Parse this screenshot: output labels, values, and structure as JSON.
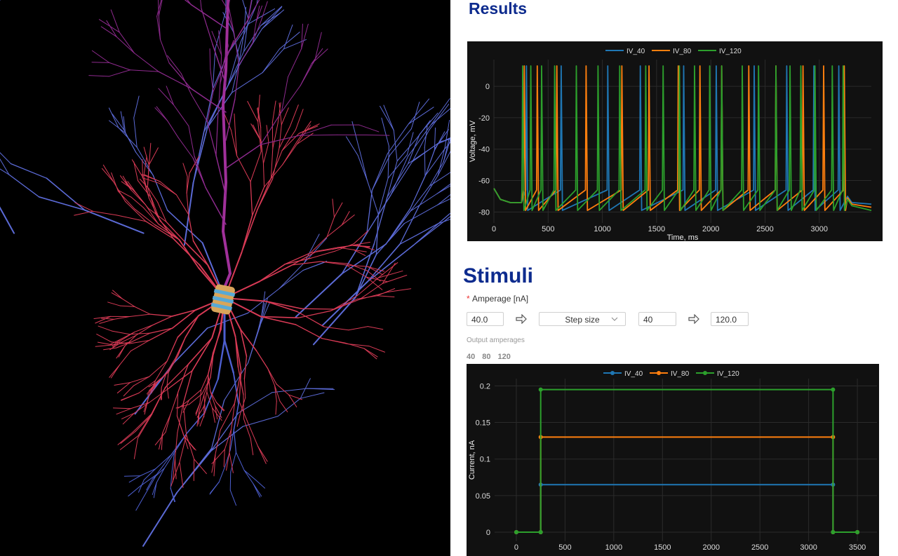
{
  "results": {
    "title": "Results"
  },
  "stimuli": {
    "title": "Stimuli",
    "required_mark": "*",
    "amperage_label": "Amperage [nA]",
    "start": "40.0",
    "mode": "Step size",
    "step": "40",
    "end": "120.0",
    "output_label": "Output amperages",
    "outputs": [
      "40",
      "80",
      "120"
    ]
  },
  "chart_data": [
    {
      "type": "line",
      "xlabel": "Time, ms",
      "ylabel": "Voltage, mV",
      "xlim": [
        0,
        3480
      ],
      "ylim": [
        -87,
        17
      ],
      "xticks": [
        0,
        500,
        1000,
        1500,
        2000,
        2500,
        3000
      ],
      "yticks": [
        -80,
        -60,
        -40,
        -20,
        0
      ],
      "grid": true,
      "legend": "top",
      "markers": false,
      "series": [
        {
          "name": "IV_40",
          "color": "#1f77b4",
          "x": [
            0,
            60,
            150,
            255,
            294,
            300,
            312,
            614,
            620,
            632,
            1044,
            1050,
            1062,
            1344,
            1350,
            1362,
            1744,
            1750,
            1762,
            2044,
            2050,
            2062,
            2394,
            2400,
            2412,
            2694,
            2700,
            2712,
            2944,
            2950,
            2962,
            3174,
            3180,
            3192,
            3260,
            3300,
            3480
          ],
          "values": [
            -65,
            -72,
            -74,
            -74,
            -66,
            13,
            -79,
            -66,
            13,
            -79,
            -66,
            13,
            -79,
            -66,
            13,
            -79,
            -66,
            13,
            -79,
            -66,
            13,
            -79,
            -66,
            13,
            -79,
            -66,
            13,
            -79,
            -66,
            13,
            -79,
            -66,
            13,
            -79,
            -70,
            -74,
            -75
          ]
        },
        {
          "name": "IV_80",
          "color": "#ff7f0e",
          "x": [
            0,
            60,
            150,
            255,
            274,
            280,
            292,
            394,
            400,
            412,
            574,
            580,
            592,
            844,
            850,
            862,
            1174,
            1180,
            1192,
            1424,
            1430,
            1442,
            1694,
            1700,
            1712,
            1894,
            1900,
            1912,
            2094,
            2100,
            2112,
            2344,
            2350,
            2362,
            2594,
            2600,
            2612,
            2844,
            2850,
            2862,
            3034,
            3040,
            3052,
            3224,
            3230,
            3242,
            3260,
            3300,
            3480
          ],
          "values": [
            -65,
            -72,
            -74,
            -74,
            -66,
            13,
            -79,
            -66,
            13,
            -79,
            -66,
            13,
            -79,
            -66,
            13,
            -79,
            -66,
            13,
            -79,
            -66,
            13,
            -79,
            -66,
            13,
            -79,
            -66,
            13,
            -79,
            -66,
            13,
            -79,
            -66,
            13,
            -79,
            -66,
            13,
            -79,
            -66,
            13,
            -79,
            -66,
            13,
            -79,
            -66,
            13,
            -79,
            -71,
            -75,
            -77
          ]
        },
        {
          "name": "IV_120",
          "color": "#2ca02c",
          "x": [
            0,
            60,
            150,
            255,
            259,
            265,
            277,
            334,
            340,
            352,
            434,
            440,
            452,
            554,
            560,
            572,
            754,
            760,
            772,
            954,
            960,
            972,
            1154,
            1160,
            1172,
            1394,
            1400,
            1412,
            1554,
            1560,
            1572,
            1704,
            1710,
            1722,
            1844,
            1850,
            1862,
            1984,
            1990,
            2002,
            2094,
            2100,
            2112,
            2284,
            2290,
            2302,
            2434,
            2440,
            2452,
            2594,
            2600,
            2612,
            2724,
            2730,
            2742,
            2824,
            2830,
            2842,
            2954,
            2960,
            2972,
            3114,
            3120,
            3132,
            3214,
            3220,
            3232,
            3260,
            3300,
            3480
          ],
          "values": [
            -65,
            -72,
            -74,
            -74,
            -66,
            13,
            -79,
            -66,
            13,
            -79,
            -66,
            13,
            -79,
            -66,
            13,
            -79,
            -66,
            13,
            -79,
            -66,
            13,
            -79,
            -66,
            13,
            -79,
            -66,
            13,
            -79,
            -66,
            13,
            -79,
            -66,
            13,
            -79,
            -66,
            13,
            -79,
            -66,
            13,
            -79,
            -66,
            13,
            -79,
            -66,
            13,
            -79,
            -66,
            13,
            -79,
            -66,
            13,
            -79,
            -66,
            13,
            -79,
            -66,
            13,
            -79,
            -66,
            13,
            -79,
            -66,
            13,
            -79,
            -66,
            13,
            -79,
            -72,
            -76,
            -79
          ]
        }
      ]
    },
    {
      "type": "line",
      "ylabel": "Current, nA",
      "xlim": [
        -223,
        3701
      ],
      "ylim": [
        -0.0125,
        0.21
      ],
      "xticks": [
        0,
        500,
        1000,
        1500,
        2000,
        2500,
        3000,
        3500
      ],
      "yticks": [
        0,
        0.05,
        0.1,
        0.15,
        0.2
      ],
      "grid": true,
      "legend": "top",
      "markers": true,
      "series": [
        {
          "name": "IV_40",
          "color": "#1f77b4",
          "x": [
            0,
            250,
            250,
            3250,
            3250,
            3500
          ],
          "values": [
            0,
            0,
            0.065,
            0.065,
            0,
            0
          ]
        },
        {
          "name": "IV_80",
          "color": "#ff7f0e",
          "x": [
            0,
            250,
            250,
            3250,
            3250,
            3500
          ],
          "values": [
            0,
            0,
            0.13,
            0.13,
            0,
            0
          ]
        },
        {
          "name": "IV_120",
          "color": "#2ca02c",
          "x": [
            0,
            250,
            250,
            3250,
            3250,
            3500
          ],
          "values": [
            0,
            0,
            0.195,
            0.195,
            0,
            0
          ]
        }
      ]
    }
  ]
}
